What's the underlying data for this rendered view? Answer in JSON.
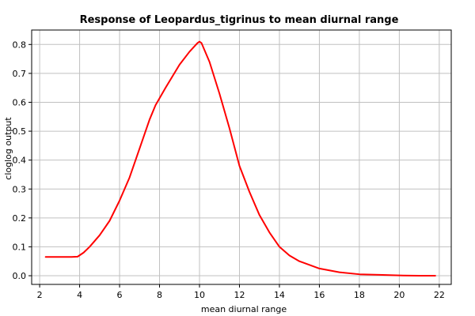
{
  "chart_data": {
    "type": "line",
    "title": "Response of Leopardus_tigrinus to mean diurnal range",
    "xlabel": "mean diurnal range",
    "ylabel": "cloglog output",
    "xlim": [
      1.6,
      22.6
    ],
    "ylim": [
      -0.03,
      0.85
    ],
    "xticks": [
      2,
      4,
      6,
      8,
      10,
      12,
      14,
      16,
      18,
      20,
      22
    ],
    "yticks": [
      0.0,
      0.1,
      0.2,
      0.3,
      0.4,
      0.5,
      0.6,
      0.7,
      0.8
    ],
    "grid": true,
    "line_color": "#ff0000",
    "grid_color": "#c0c0c0",
    "series": [
      {
        "values": [
          [
            2.3,
            0.065
          ],
          [
            3.0,
            0.065
          ],
          [
            3.6,
            0.065
          ],
          [
            3.9,
            0.066
          ],
          [
            4.2,
            0.08
          ],
          [
            4.5,
            0.1
          ],
          [
            5.0,
            0.14
          ],
          [
            5.5,
            0.19
          ],
          [
            6.0,
            0.26
          ],
          [
            6.5,
            0.34
          ],
          [
            7.0,
            0.44
          ],
          [
            7.5,
            0.54
          ],
          [
            7.8,
            0.59
          ],
          [
            8.3,
            0.65
          ],
          [
            9.0,
            0.73
          ],
          [
            9.5,
            0.775
          ],
          [
            9.9,
            0.805
          ],
          [
            10.0,
            0.81
          ],
          [
            10.1,
            0.805
          ],
          [
            10.5,
            0.74
          ],
          [
            11.0,
            0.63
          ],
          [
            11.5,
            0.51
          ],
          [
            12.0,
            0.38
          ],
          [
            12.5,
            0.29
          ],
          [
            13.0,
            0.21
          ],
          [
            13.5,
            0.15
          ],
          [
            14.0,
            0.1
          ],
          [
            14.5,
            0.07
          ],
          [
            15.0,
            0.05
          ],
          [
            16.0,
            0.025
          ],
          [
            17.0,
            0.012
          ],
          [
            18.0,
            0.005
          ],
          [
            19.0,
            0.003
          ],
          [
            19.5,
            0.002
          ],
          [
            20.0,
            0.001
          ],
          [
            21.0,
            0.0
          ],
          [
            21.8,
            0.0
          ]
        ]
      }
    ]
  }
}
